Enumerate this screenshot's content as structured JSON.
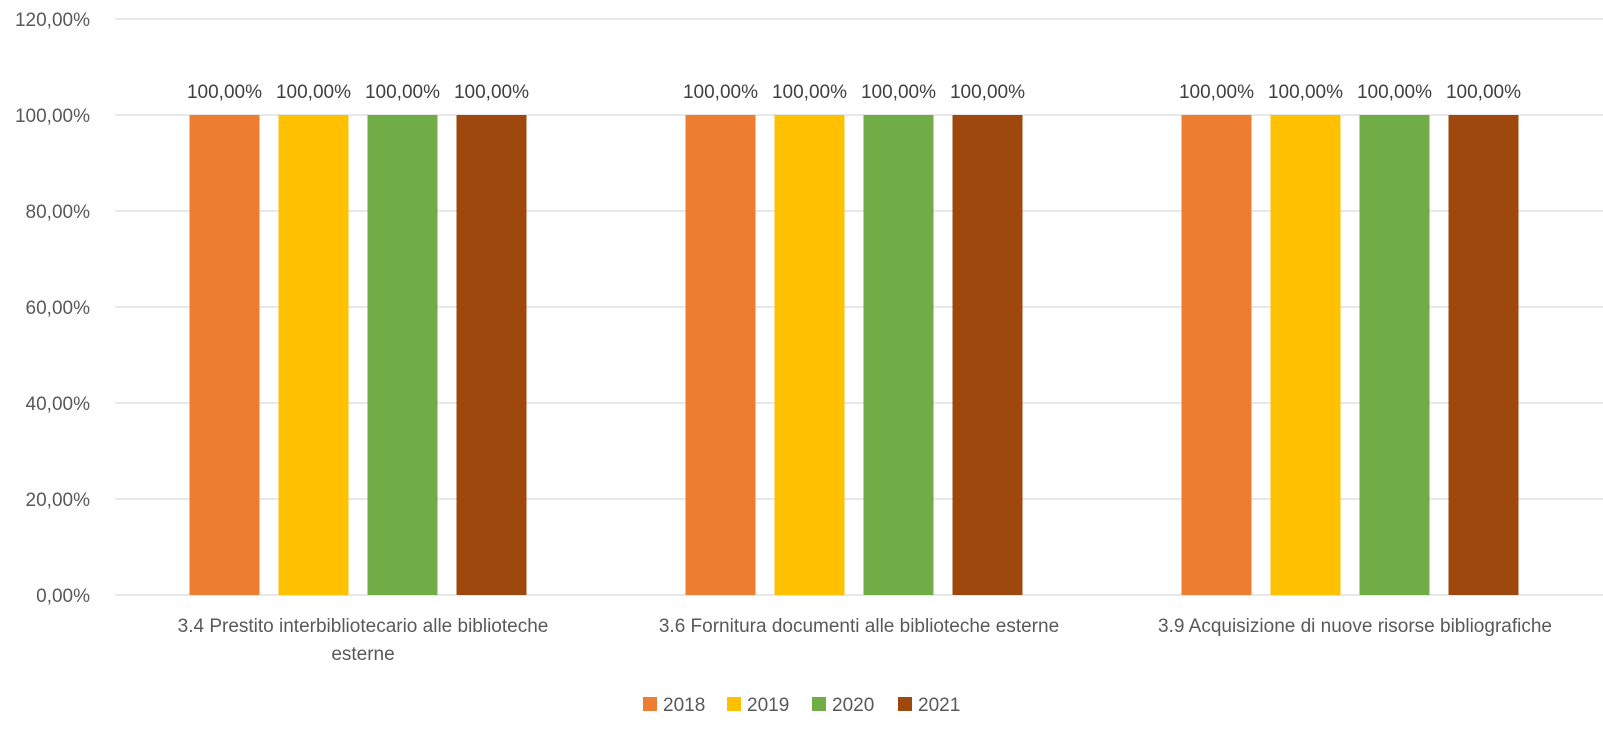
{
  "chart_data": {
    "type": "bar",
    "categories": [
      [
        "3.4 Prestito interbibliotecario alle biblioteche",
        "esterne"
      ],
      [
        "3.6 Fornitura documenti alle biblioteche esterne"
      ],
      [
        "3.9 Acquisizione di nuove risorse bibliografiche"
      ]
    ],
    "series": [
      {
        "name": "2018",
        "color": "#ed7d31",
        "values": [
          100,
          100,
          100
        ],
        "labels": [
          "100,00%",
          "100,00%",
          "100,00%"
        ]
      },
      {
        "name": "2019",
        "color": "#ffc000",
        "values": [
          100,
          100,
          100
        ],
        "labels": [
          "100,00%",
          "100,00%",
          "100,00%"
        ]
      },
      {
        "name": "2020",
        "color": "#70ad47",
        "values": [
          100,
          100,
          100
        ],
        "labels": [
          "100,00%",
          "100,00%",
          "100,00%"
        ]
      },
      {
        "name": "2021",
        "color": "#9e480e",
        "values": [
          100,
          100,
          100
        ],
        "labels": [
          "100,00%",
          "100,00%",
          "100,00%"
        ]
      }
    ],
    "ylim": [
      0,
      120
    ],
    "yticks": [
      0,
      20,
      40,
      60,
      80,
      100,
      120
    ],
    "ytick_labels": [
      "0,00%",
      "20,00%",
      "40,00%",
      "60,00%",
      "80,00%",
      "100,00%",
      "120,00%"
    ],
    "grid": true,
    "legend": "bottom",
    "title": "",
    "xlabel": "",
    "ylabel": ""
  }
}
